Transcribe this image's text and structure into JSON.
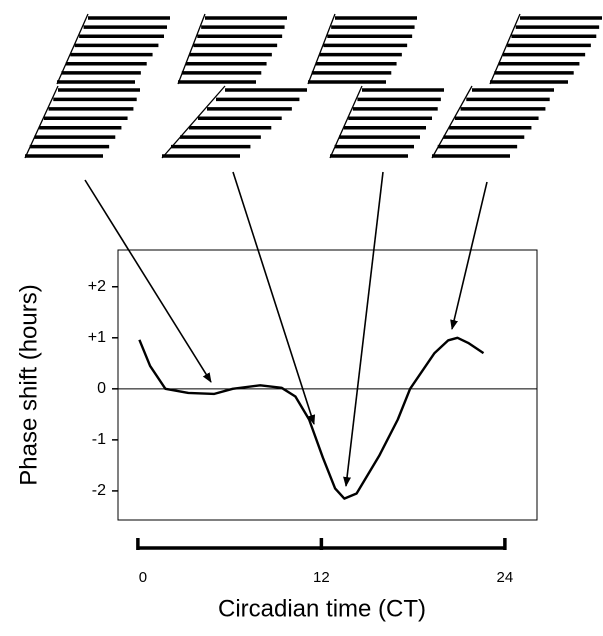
{
  "chart_data": {
    "type": "line",
    "x_label": "Circadian time (CT)",
    "y_label": "Phase shift (hours)",
    "xlim": [
      -1.3,
      26.1
    ],
    "ylim": [
      -2.57,
      2.72
    ],
    "xticks": [
      0,
      12,
      24
    ],
    "yticks": [
      {
        "value": 2,
        "label": "+2"
      },
      {
        "value": 1,
        "label": "+1"
      },
      0,
      -1,
      -2
    ],
    "zero_line": true,
    "series": [
      {
        "color": "#000000",
        "x": [
          0.1,
          0.8,
          1.8,
          3.3,
          5.0,
          6.2,
          8.0,
          9.4,
          10.3,
          11.2,
          12.1,
          12.9,
          13.5,
          14.3,
          15.8,
          17.0,
          17.8,
          19.4,
          20.3,
          20.9,
          21.6,
          22.6
        ],
        "values": [
          0.96,
          0.45,
          0.0,
          -0.08,
          -0.1,
          0.0,
          0.07,
          0.02,
          -0.15,
          -0.6,
          -1.35,
          -1.95,
          -2.15,
          -2.05,
          -1.3,
          -0.6,
          0.0,
          0.7,
          0.95,
          1.0,
          0.9,
          0.7
        ]
      }
    ]
  }
}
